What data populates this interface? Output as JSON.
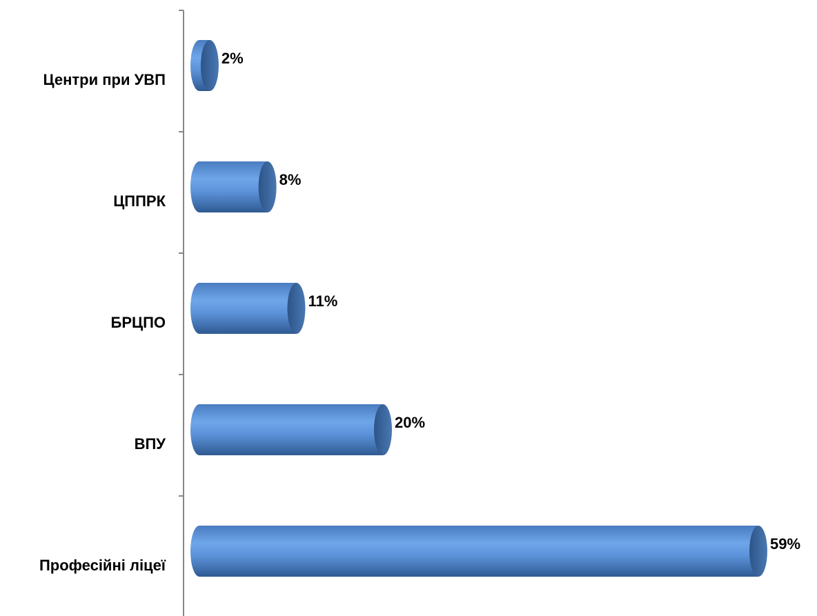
{
  "chart_data": {
    "type": "bar",
    "orientation": "horizontal",
    "style": "3d-cylinder",
    "categories": [
      "Центри при УВП",
      "ЦППРК",
      "БРЦПО",
      "ВПУ",
      "Професійні ліцеї"
    ],
    "values": [
      2,
      8,
      11,
      20,
      59
    ],
    "value_labels": [
      "2%",
      "8%",
      "11%",
      "20%",
      "59%"
    ],
    "unit": "%",
    "title": "",
    "xlabel": "",
    "ylabel": "",
    "xlim": [
      0,
      59
    ],
    "grid": false,
    "legend": "none",
    "colors": {
      "bar": "#4f81bd",
      "bar_light": "#6fa6ea",
      "bar_dark": "#2f5a92",
      "cap": "#3a6ba8",
      "axis": "#868686"
    }
  }
}
